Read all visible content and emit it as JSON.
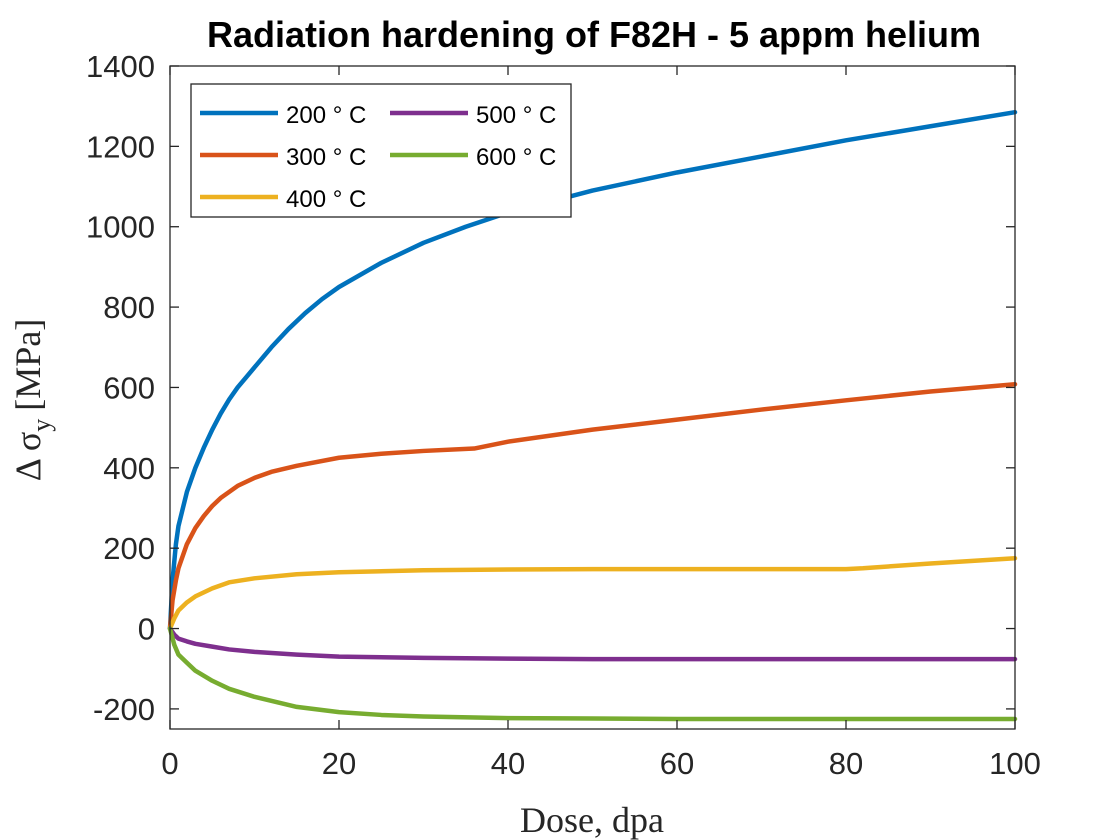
{
  "chart_data": {
    "type": "line",
    "title": "Radiation hardening of F82H - 5 appm helium",
    "xlabel": "Dose, dpa",
    "ylabel_main": "Δ σ",
    "ylabel_sub": "y",
    "ylabel_unit": "[MPa]",
    "xlim": [
      0,
      100
    ],
    "ylim": [
      -250,
      1400
    ],
    "xticks": [
      0,
      20,
      40,
      60,
      80,
      100
    ],
    "yticks": [
      -200,
      0,
      200,
      400,
      600,
      800,
      1000,
      1200,
      1400
    ],
    "grid": false,
    "legend_position": "top-left",
    "series": [
      {
        "name": "200 ° C",
        "color": "#0072BD",
        "points": [
          [
            0,
            0
          ],
          [
            0.3,
            120
          ],
          [
            0.7,
            210
          ],
          [
            1,
            255
          ],
          [
            2,
            340
          ],
          [
            3,
            400
          ],
          [
            4,
            450
          ],
          [
            5,
            495
          ],
          [
            6,
            535
          ],
          [
            7,
            570
          ],
          [
            8,
            600
          ],
          [
            9,
            625
          ],
          [
            10,
            650
          ],
          [
            11,
            675
          ],
          [
            12,
            700
          ],
          [
            14,
            745
          ],
          [
            16,
            785
          ],
          [
            18,
            820
          ],
          [
            20,
            850
          ],
          [
            25,
            910
          ],
          [
            30,
            960
          ],
          [
            35,
            1000
          ],
          [
            40,
            1035
          ],
          [
            50,
            1090
          ],
          [
            60,
            1135
          ],
          [
            70,
            1175
          ],
          [
            80,
            1215
          ],
          [
            90,
            1250
          ],
          [
            100,
            1285
          ]
        ]
      },
      {
        "name": "300 ° C",
        "color": "#D95319",
        "points": [
          [
            0,
            0
          ],
          [
            0.3,
            70
          ],
          [
            0.7,
            120
          ],
          [
            1,
            150
          ],
          [
            2,
            210
          ],
          [
            3,
            250
          ],
          [
            4,
            280
          ],
          [
            5,
            305
          ],
          [
            6,
            325
          ],
          [
            8,
            355
          ],
          [
            10,
            375
          ],
          [
            12,
            390
          ],
          [
            15,
            405
          ],
          [
            20,
            425
          ],
          [
            25,
            435
          ],
          [
            30,
            442
          ],
          [
            36,
            448
          ],
          [
            40,
            465
          ],
          [
            50,
            495
          ],
          [
            60,
            520
          ],
          [
            70,
            545
          ],
          [
            80,
            568
          ],
          [
            90,
            590
          ],
          [
            100,
            608
          ]
        ]
      },
      {
        "name": "400 ° C",
        "color": "#EDB120",
        "points": [
          [
            0,
            0
          ],
          [
            0.5,
            25
          ],
          [
            1,
            45
          ],
          [
            2,
            65
          ],
          [
            3,
            80
          ],
          [
            5,
            100
          ],
          [
            7,
            115
          ],
          [
            10,
            125
          ],
          [
            15,
            135
          ],
          [
            20,
            140
          ],
          [
            30,
            145
          ],
          [
            40,
            147
          ],
          [
            50,
            148
          ],
          [
            60,
            148
          ],
          [
            70,
            148
          ],
          [
            80,
            148
          ],
          [
            82,
            150
          ],
          [
            90,
            162
          ],
          [
            100,
            175
          ]
        ]
      },
      {
        "name": "500 ° C",
        "color": "#7E2F8E",
        "points": [
          [
            0,
            0
          ],
          [
            0.5,
            -15
          ],
          [
            1,
            -25
          ],
          [
            2,
            -32
          ],
          [
            3,
            -38
          ],
          [
            5,
            -45
          ],
          [
            7,
            -52
          ],
          [
            10,
            -58
          ],
          [
            15,
            -65
          ],
          [
            20,
            -70
          ],
          [
            30,
            -73
          ],
          [
            40,
            -75
          ],
          [
            50,
            -76
          ],
          [
            60,
            -76
          ],
          [
            70,
            -76
          ],
          [
            80,
            -76
          ],
          [
            90,
            -76
          ],
          [
            100,
            -76
          ]
        ]
      },
      {
        "name": "600 ° C",
        "color": "#77AC30",
        "points": [
          [
            0,
            0
          ],
          [
            0.5,
            -40
          ],
          [
            1,
            -65
          ],
          [
            2,
            -85
          ],
          [
            3,
            -105
          ],
          [
            5,
            -130
          ],
          [
            7,
            -150
          ],
          [
            10,
            -170
          ],
          [
            15,
            -195
          ],
          [
            20,
            -208
          ],
          [
            25,
            -215
          ],
          [
            30,
            -219
          ],
          [
            40,
            -223
          ],
          [
            50,
            -224
          ],
          [
            60,
            -225
          ],
          [
            70,
            -225
          ],
          [
            80,
            -225
          ],
          [
            90,
            -225
          ],
          [
            100,
            -225
          ]
        ]
      }
    ]
  }
}
